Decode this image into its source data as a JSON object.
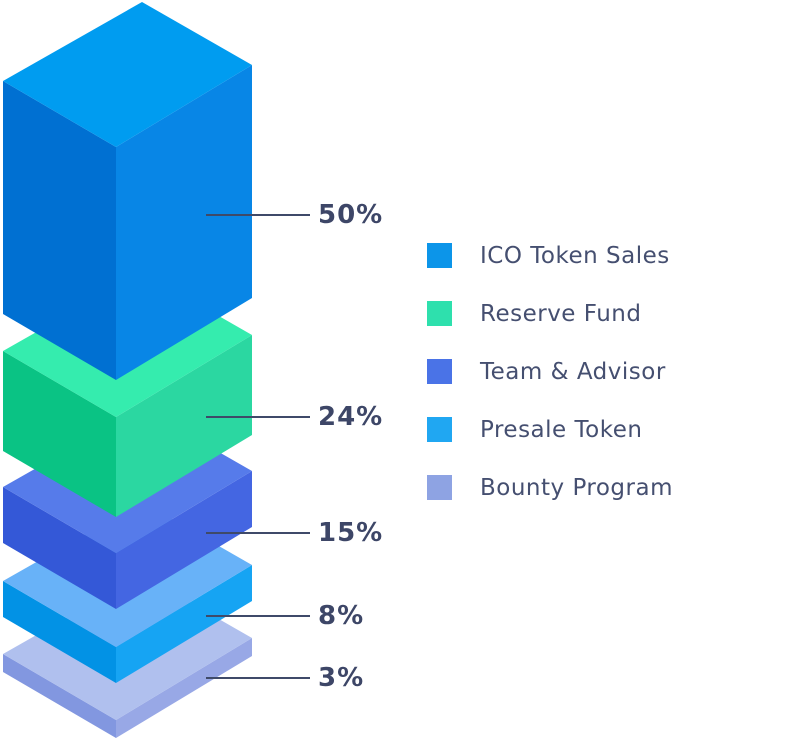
{
  "colors": {
    "background": "#FFFFFF",
    "leader_line": "#3F4A69",
    "value_text": "#3D4667",
    "legend_text": "#454F70"
  },
  "chart_data": {
    "type": "bar",
    "subtype": "isometric-stacked-tower",
    "title": "",
    "unit": "%",
    "legend_position": "right",
    "categories": [
      "ICO Token Sales",
      "Reserve Fund",
      "Team & Advisor",
      "Presale Token",
      "Bounty Program"
    ],
    "values": [
      50,
      24,
      15,
      8,
      3
    ],
    "segments": [
      {
        "label": "ICO Token Sales",
        "value": 50,
        "value_label": "50%",
        "legend_color": "#0C95E9",
        "colors": {
          "top": "#009CF0",
          "left": "#0070D2",
          "right": "#0886E6"
        }
      },
      {
        "label": "Reserve Fund",
        "value": 24,
        "value_label": "24%",
        "legend_color": "#2EE0AD",
        "colors": {
          "top": "#35ECAE",
          "left": "#0AC384",
          "right": "#2BD7A1"
        }
      },
      {
        "label": "Team & Advisor",
        "value": 15,
        "value_label": "15%",
        "legend_color": "#4A73E7",
        "colors": {
          "top": "#567BEA",
          "left": "#3458D7",
          "right": "#4466E2"
        }
      },
      {
        "label": "Presale Token",
        "value": 8,
        "value_label": "8%",
        "legend_color": "#20A7F2",
        "colors": {
          "top": "#68B2F8",
          "left": "#0292E5",
          "right": "#16A4F3"
        }
      },
      {
        "label": "Bounty Program",
        "value": 3,
        "value_label": "3%",
        "legend_color": "#8EA3E3",
        "colors": {
          "top": "#B0C0EE",
          "left": "#8297E0",
          "right": "#98A8E6"
        }
      }
    ]
  }
}
